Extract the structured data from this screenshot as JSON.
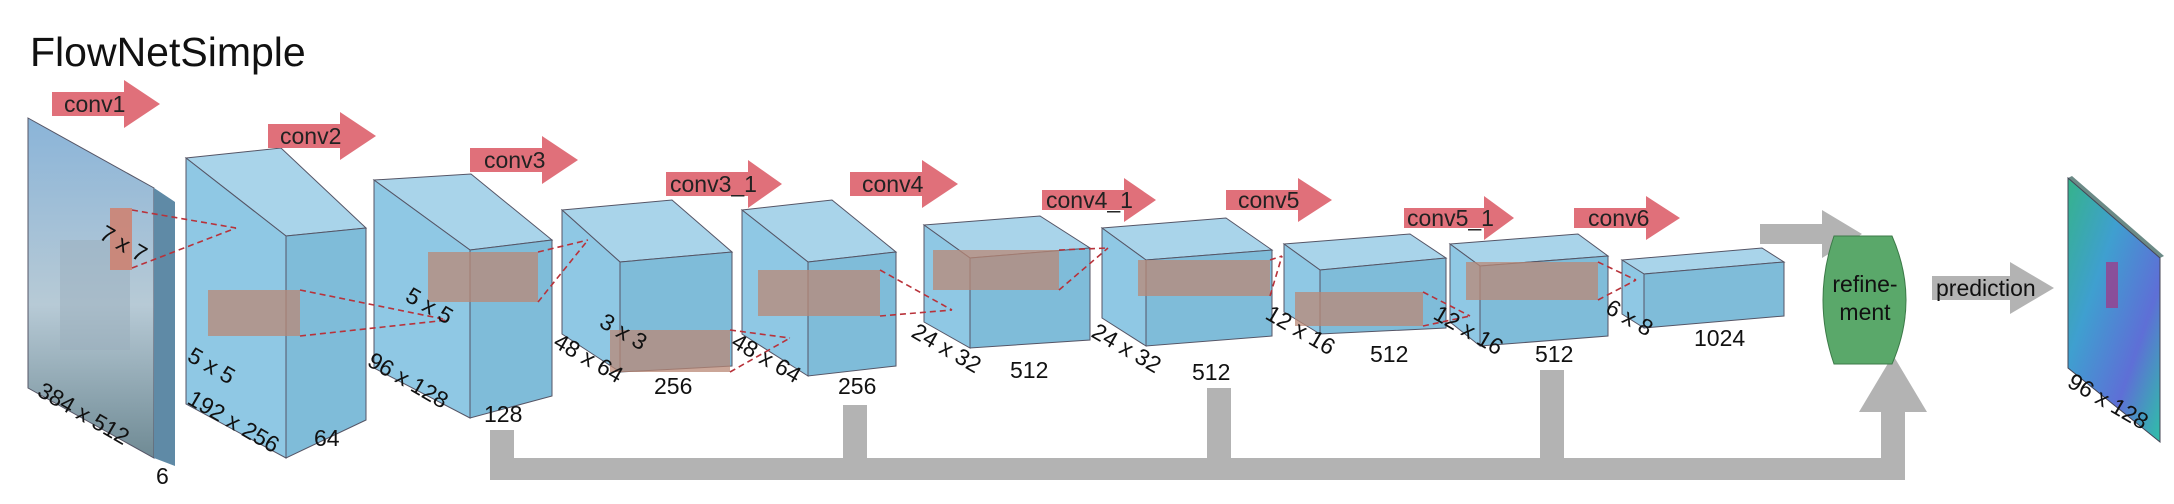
{
  "title": "FlowNetSimple",
  "input": {
    "dims": "384 x 512",
    "channels": "6",
    "kernel": "7 x 7"
  },
  "layers": [
    {
      "conv": "conv1"
    },
    {
      "conv": "conv2",
      "dims": "192 x 256",
      "channels": "64",
      "kernel": "5 x 5"
    },
    {
      "conv": "conv3",
      "dims": "96 x 128",
      "channels": "128",
      "kernel": "5 x 5"
    },
    {
      "conv": "conv3_1",
      "dims": "48 x 64",
      "channels": "256",
      "kernel": "3 x 3"
    },
    {
      "conv": "conv4",
      "dims": "48 x 64",
      "channels": "256"
    },
    {
      "conv": "conv4_1",
      "dims": "24 x 32",
      "channels": "512"
    },
    {
      "conv": "conv5",
      "dims": "24 x 32",
      "channels": "512"
    },
    {
      "conv": "conv5_1",
      "dims": "12 x 16",
      "channels": "512"
    },
    {
      "conv": "conv6",
      "dims": "12 x 16",
      "channels": "512"
    },
    {
      "dims": "6 x 8",
      "channels": "1024"
    }
  ],
  "refinement": {
    "line1": "refine-",
    "line2": "ment"
  },
  "prediction": {
    "label": "prediction",
    "dims": "96 x 128"
  },
  "colors": {
    "block": "#8fc8e4",
    "arrow": "#e0707a",
    "refinement": "#5aa86a",
    "skip": "#b3b3b3",
    "kernel": "#c88672"
  }
}
